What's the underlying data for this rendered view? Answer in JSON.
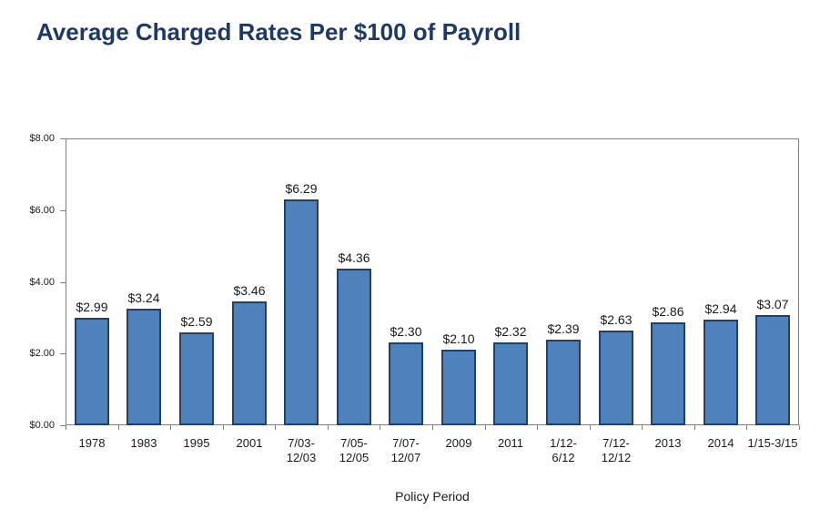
{
  "page_title": "Average Charged Rates Per $100 of Payroll",
  "chart_data": {
    "type": "bar",
    "title": "Average Charged Rates Per $100 of Payroll",
    "xlabel": "Policy Period",
    "ylabel": "",
    "ylim": [
      0,
      8
    ],
    "ytick_values": [
      0,
      2,
      4,
      6,
      8
    ],
    "ytick_labels": [
      "$0.00",
      "$2.00",
      "$4.00",
      "$6.00",
      "$8.00"
    ],
    "grid": false,
    "legend": false,
    "categories": [
      "1978",
      "1983",
      "1995",
      "2001",
      "7/03-\n12/03",
      "7/05-\n12/05",
      "7/07-\n12/07",
      "2009",
      "2011",
      "1/12-\n6/12",
      "7/12-\n12/12",
      "2013",
      "2014",
      "1/15-3/15"
    ],
    "values": [
      2.99,
      3.24,
      2.59,
      3.46,
      6.29,
      4.36,
      2.3,
      2.1,
      2.32,
      2.39,
      2.63,
      2.86,
      2.94,
      3.07
    ],
    "value_labels": [
      "$2.99",
      "$3.24",
      "$2.59",
      "$3.46",
      "$6.29",
      "$4.36",
      "$2.30",
      "$2.10",
      "$2.32",
      "$2.39",
      "$2.63",
      "$2.86",
      "$2.94",
      "$3.07"
    ],
    "colors": {
      "bar_fill": "#4F81BD",
      "bar_border": "#243F60",
      "title_text": "#1F3864",
      "axis_line": "#808080",
      "label_text": "#1a1a1a"
    }
  }
}
